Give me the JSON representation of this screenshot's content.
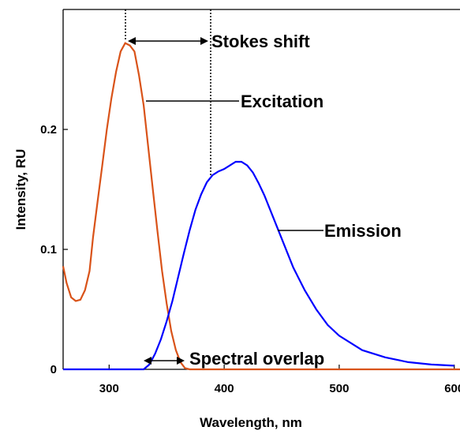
{
  "chart_data": {
    "type": "line",
    "title": "",
    "xlabel": "Wavelength, nm",
    "ylabel": "Intensity, RU",
    "xlim": [
      260,
      605
    ],
    "ylim": [
      0,
      0.3
    ],
    "x_ticks": [
      "300",
      "400",
      "500",
      "600"
    ],
    "y_ticks": [
      "0",
      "0.1",
      "0.2"
    ],
    "grid": false,
    "legend": "none",
    "series": [
      {
        "color": "#D95319",
        "x": [
          260,
          263,
          267,
          271,
          275,
          279,
          283,
          286,
          290,
          294,
          298,
          302,
          306,
          310,
          314,
          318,
          322,
          326,
          330,
          334,
          338,
          342,
          346,
          350,
          354,
          358,
          362,
          366,
          370,
          380,
          400,
          450,
          500,
          550,
          600,
          605
        ],
        "y": [
          0.086,
          0.072,
          0.06,
          0.057,
          0.058,
          0.066,
          0.082,
          0.11,
          0.14,
          0.17,
          0.2,
          0.226,
          0.248,
          0.265,
          0.272,
          0.27,
          0.265,
          0.245,
          0.22,
          0.185,
          0.15,
          0.115,
          0.082,
          0.055,
          0.032,
          0.016,
          0.006,
          0.001,
          0.0,
          0.0,
          0.0,
          0.0,
          0.0,
          0.0,
          0.0,
          0.0
        ]
      },
      {
        "color": "#0000FF",
        "x": [
          260,
          300,
          320,
          330,
          335,
          340,
          345,
          350,
          355,
          360,
          365,
          370,
          375,
          380,
          385,
          390,
          395,
          400,
          405,
          410,
          415,
          420,
          425,
          430,
          435,
          440,
          450,
          460,
          470,
          480,
          490,
          500,
          520,
          540,
          560,
          580,
          600
        ],
        "y": [
          0.0,
          0.0,
          0.0,
          0.0,
          0.004,
          0.013,
          0.025,
          0.04,
          0.057,
          0.077,
          0.097,
          0.116,
          0.133,
          0.146,
          0.156,
          0.162,
          0.165,
          0.167,
          0.17,
          0.173,
          0.173,
          0.17,
          0.164,
          0.155,
          0.145,
          0.133,
          0.109,
          0.085,
          0.066,
          0.05,
          0.037,
          0.028,
          0.016,
          0.01,
          0.006,
          0.004,
          0.003
        ]
      }
    ],
    "annotations": {
      "stokes": "Stokes shift",
      "excitation": "Excitation",
      "emission": "Emission",
      "overlap": "Spectral overlap"
    }
  }
}
